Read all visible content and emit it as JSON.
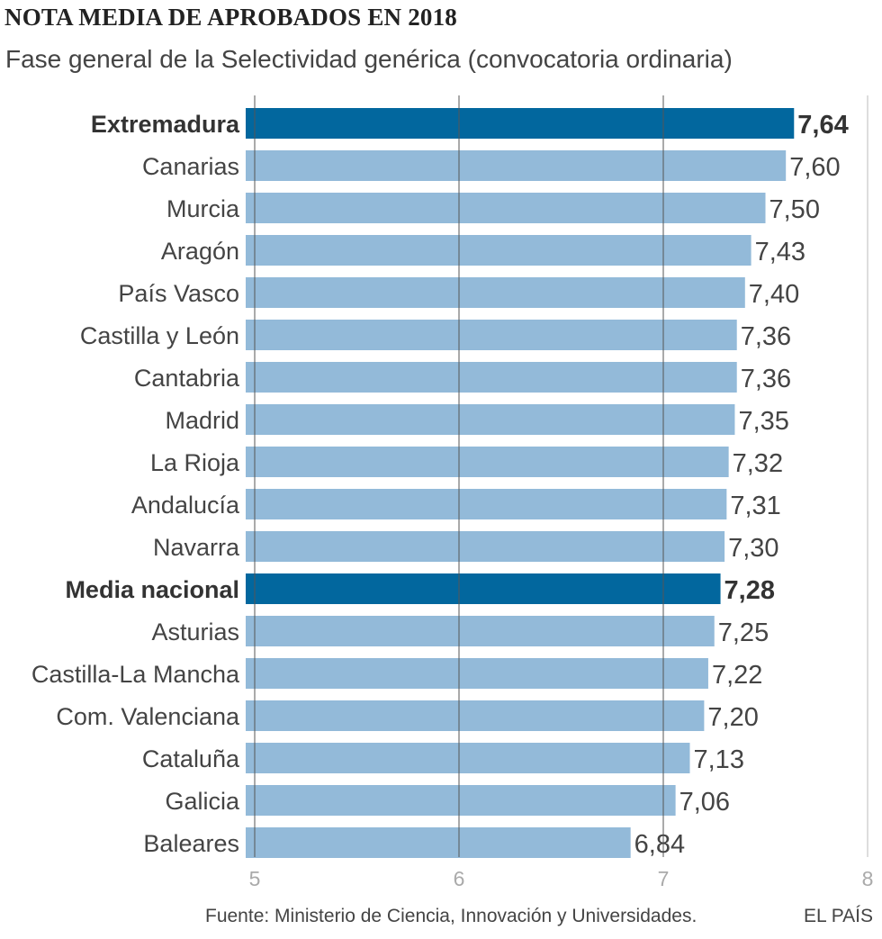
{
  "header": {
    "title": "NOTA MEDIA DE APROBADOS EN 2018",
    "subtitle": "Fase general de la Selectividad genérica (convocatoria ordinaria)"
  },
  "footer": {
    "source": "Fuente: Ministerio de Ciencia, Innovación y Universidades.",
    "brand": "EL PAÍS"
  },
  "colors": {
    "highlight": "#02679e",
    "regular": "#93bad9",
    "grid": "#555555",
    "tick": "#aaaaaa"
  },
  "chart_data": {
    "type": "bar",
    "orientation": "horizontal",
    "categories": [
      "Extremadura",
      "Canarias",
      "Murcia",
      "Aragón",
      "País Vasco",
      "Castilla y León",
      "Cantabria",
      "Madrid",
      "La Rioja",
      "Andalucía",
      "Navarra",
      "Media nacional",
      "Asturias",
      "Castilla-La Mancha",
      "Com. Valenciana",
      "Cataluña",
      "Galicia",
      "Baleares"
    ],
    "values": [
      7.64,
      7.6,
      7.5,
      7.43,
      7.4,
      7.36,
      7.36,
      7.35,
      7.32,
      7.31,
      7.3,
      7.28,
      7.25,
      7.22,
      7.2,
      7.13,
      7.06,
      6.84
    ],
    "value_labels": [
      "7,64",
      "7,60",
      "7,50",
      "7,43",
      "7,40",
      "7,36",
      "7,36",
      "7,35",
      "7,32",
      "7,31",
      "7,30",
      "7,28",
      "7,25",
      "7,22",
      "7,20",
      "7,13",
      "7,06",
      "6,84"
    ],
    "highlighted": [
      "Extremadura",
      "Media nacional"
    ],
    "xlim": [
      5,
      8
    ],
    "xticks": [
      5,
      6,
      7,
      8
    ],
    "xtick_labels": [
      "5",
      "6",
      "7",
      "8"
    ],
    "grid": true
  }
}
